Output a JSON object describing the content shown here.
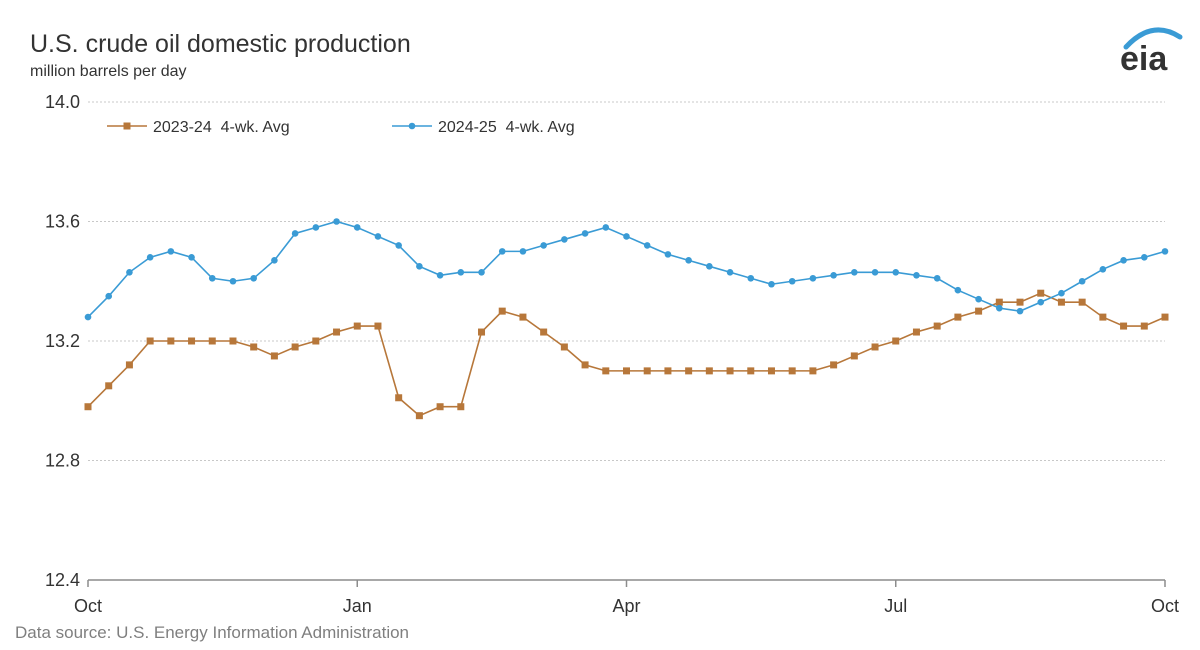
{
  "header": {
    "title": "U.S. crude oil domestic production",
    "subtitle": "million barrels per day",
    "logo_text": "eia"
  },
  "footer": {
    "source": "Data source: U.S. Energy Information Administration"
  },
  "colors": {
    "series_2023_24": "#b7773a",
    "series_2024_25": "#3a9bd5",
    "grid": "#c8c8c8",
    "axis": "#8c8c8c",
    "logo": "#3a9bd5"
  },
  "chart_data": {
    "type": "line",
    "title": "U.S. crude oil domestic production",
    "ylabel": "million barrels per day",
    "xlabel": "",
    "ylim": [
      12.4,
      14.0
    ],
    "y_ticks": [
      "12.4",
      "12.8",
      "13.2",
      "13.6",
      "14.0"
    ],
    "x_range": [
      "Oct 1",
      "Oct 1 (following year)"
    ],
    "x_ticks": [
      "Oct",
      "Jan",
      "Apr",
      "Jul",
      "Oct"
    ],
    "grid": "horizontal dotted",
    "legend_position": "top-left",
    "series": [
      {
        "name": "2023-24  4-wk. Avg",
        "marker": "square",
        "x_week": [
          0,
          1,
          2,
          3,
          4,
          5,
          6,
          7,
          8,
          9,
          10,
          11,
          12,
          13,
          14,
          15,
          16,
          17,
          18,
          19,
          20,
          21,
          22,
          23,
          24,
          25,
          26,
          27,
          28,
          29,
          30,
          31,
          32,
          33,
          34,
          35,
          36,
          37,
          38,
          39,
          40,
          41,
          42,
          43,
          44,
          45,
          46,
          47,
          48,
          49,
          50,
          51,
          52
        ],
        "values": [
          12.98,
          13.05,
          13.12,
          13.2,
          13.2,
          13.2,
          13.2,
          13.2,
          13.18,
          13.15,
          13.18,
          13.2,
          13.23,
          13.25,
          13.25,
          13.01,
          12.95,
          12.98,
          12.98,
          13.23,
          13.3,
          13.28,
          13.23,
          13.18,
          13.12,
          13.1,
          13.1,
          13.1,
          13.1,
          13.1,
          13.1,
          13.1,
          13.1,
          13.1,
          13.1,
          13.1,
          13.12,
          13.15,
          13.18,
          13.2,
          13.23,
          13.25,
          13.28,
          13.3,
          13.33,
          13.33,
          13.36,
          13.33,
          13.33,
          13.28,
          13.25,
          13.25,
          13.28
        ]
      },
      {
        "name": "2024-25  4-wk. Avg",
        "marker": "circle",
        "x_week": [
          0,
          1,
          2,
          3,
          4,
          5,
          6,
          7,
          8,
          9,
          10,
          11,
          12,
          13,
          14,
          15,
          16,
          17,
          18,
          19,
          20,
          21,
          22,
          23,
          24,
          25,
          26,
          27,
          28,
          29,
          30,
          31,
          32,
          33,
          34,
          35,
          36,
          37,
          38,
          39,
          40,
          41,
          42,
          43,
          44,
          45,
          46,
          47,
          48,
          49,
          50,
          51,
          52
        ],
        "values": [
          13.28,
          13.35,
          13.43,
          13.48,
          13.5,
          13.48,
          13.41,
          13.4,
          13.41,
          13.47,
          13.56,
          13.58,
          13.6,
          13.58,
          13.55,
          13.52,
          13.45,
          13.42,
          13.43,
          13.43,
          13.5,
          13.5,
          13.52,
          13.54,
          13.56,
          13.58,
          13.55,
          13.52,
          13.49,
          13.47,
          13.45,
          13.43,
          13.41,
          13.39,
          13.4,
          13.41,
          13.42,
          13.43,
          13.43,
          13.43,
          13.42,
          13.41,
          13.37,
          13.34,
          13.31,
          13.3,
          13.33,
          13.36,
          13.4,
          13.44,
          13.47,
          13.48,
          13.5
        ]
      }
    ]
  }
}
